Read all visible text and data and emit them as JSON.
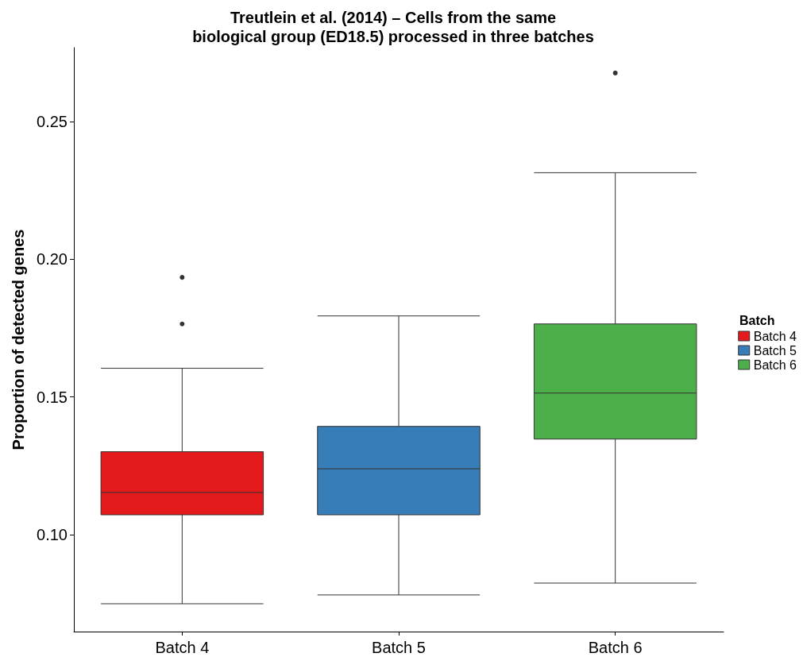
{
  "chart_data": {
    "type": "box",
    "title": "Treutlein et al. (2014) – Cells from the same\nbiological group (ED18.5) processed in three batches",
    "ylabel": "Proportion of detected genes",
    "legend_title": "Batch",
    "legend": "right",
    "grid": false,
    "categories": [
      "Batch 4",
      "Batch 5",
      "Batch 6"
    ],
    "series": [
      {
        "name": "Batch 4",
        "color": "#e41a1c",
        "boxes": [
          {
            "low": 0.0749,
            "q1": 0.1072,
            "median": 0.1153,
            "q3": 0.1301,
            "high": 0.1604,
            "outliers": [
              0.1934,
              0.1765
            ]
          },
          null,
          null
        ]
      },
      {
        "name": "Batch 5",
        "color": "#377eb8",
        "boxes": [
          null,
          {
            "low": 0.0781,
            "q1": 0.1072,
            "median": 0.1239,
            "q3": 0.1393,
            "high": 0.1794
          },
          null
        ]
      },
      {
        "name": "Batch 6",
        "color": "#4daf4a",
        "boxes": [
          null,
          null,
          {
            "low": 0.0824,
            "q1": 0.1347,
            "median": 0.1514,
            "q3": 0.1765,
            "high": 0.2314,
            "outliers": [
              0.2676
            ]
          }
        ]
      }
    ],
    "ylim": [
      0.0648,
      0.2768
    ],
    "yticks": [
      {
        "value": 0.1,
        "label": "0.10"
      },
      {
        "value": 0.15,
        "label": "0.15"
      },
      {
        "value": 0.2,
        "label": "0.20"
      },
      {
        "value": 0.25,
        "label": "0.25"
      }
    ]
  }
}
